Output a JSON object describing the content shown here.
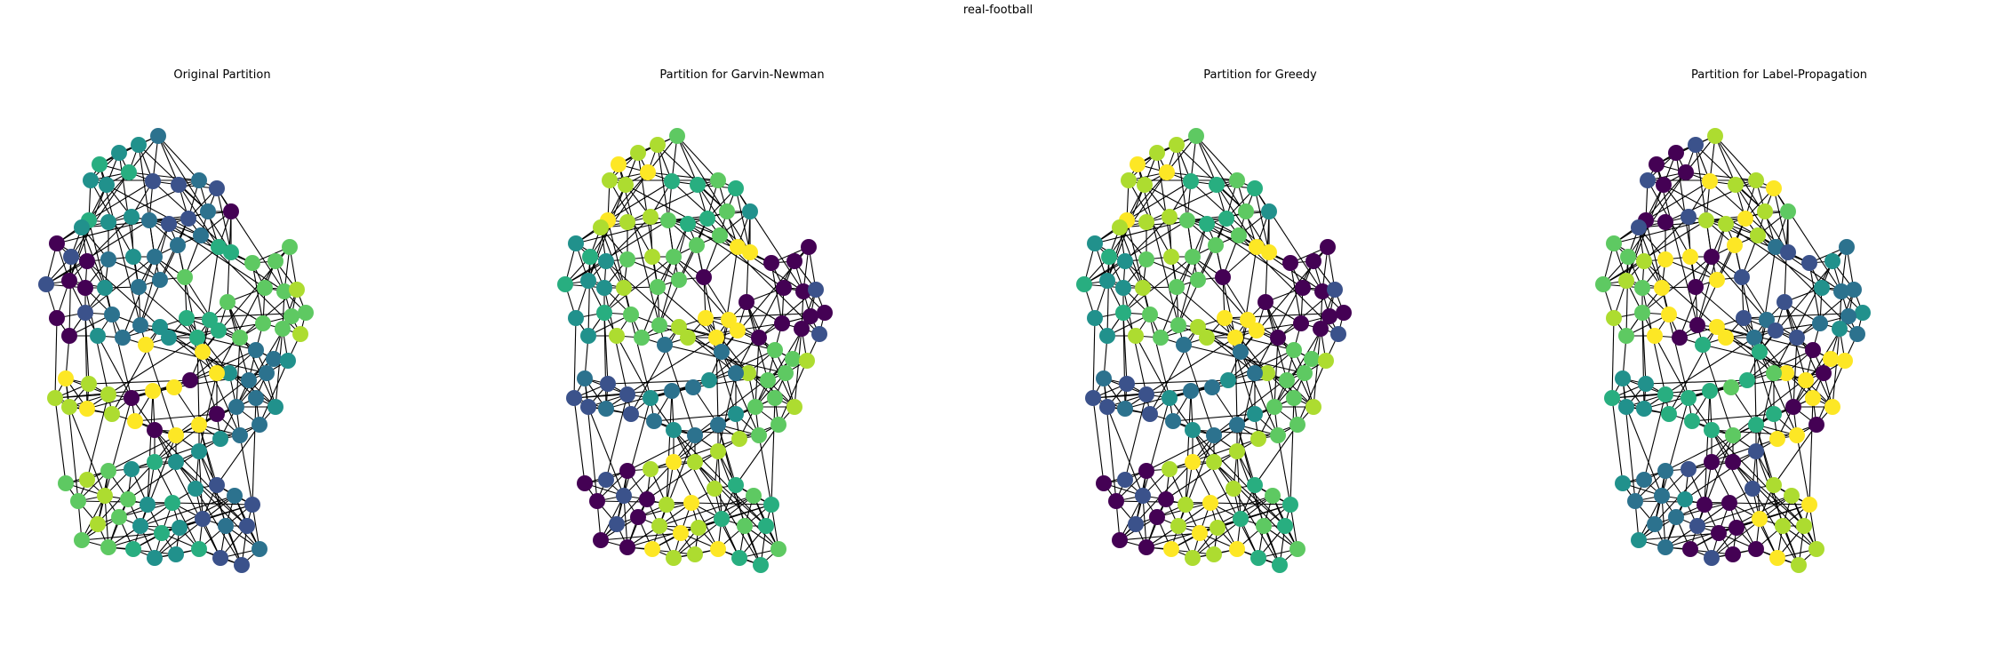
{
  "figure": {
    "title": "real-football"
  },
  "panels": [
    {
      "title": "Original Partition",
      "scheme": "original"
    },
    {
      "title": "Partition for Garvin-Newman",
      "scheme": "gn"
    },
    {
      "title": "Partition for Greedy",
      "scheme": "greedy"
    },
    {
      "title": "Partition for Label-Propagation",
      "scheme": "lp"
    }
  ],
  "palette": {
    "edge": "#000000",
    "c0": "#440154",
    "c1": "#3b528b",
    "c2": "#2c728e",
    "c3": "#21918c",
    "c4": "#28ae80",
    "c5": "#5ec962",
    "c6": "#addc30",
    "c7": "#fde725"
  },
  "chart_data": {
    "type": "network",
    "nodes": 115,
    "note_layout": "same spring layout in every panel; node colors show community assignment"
  }
}
